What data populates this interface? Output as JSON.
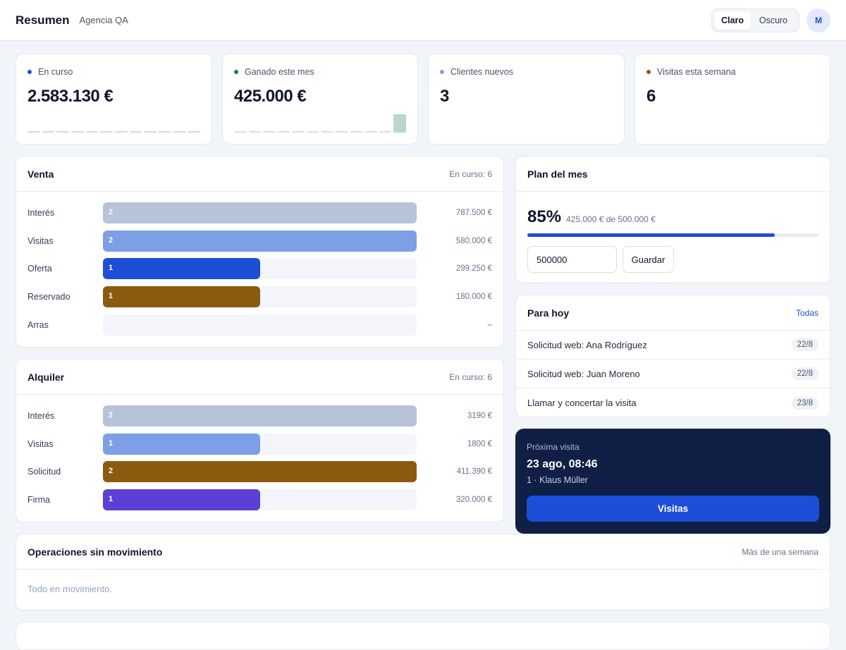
{
  "header": {
    "title": "Resumen",
    "subtitle": "Agencia QA",
    "theme_light": "Claro",
    "theme_dark": "Oscuro",
    "avatar_initial": "M"
  },
  "stats": [
    {
      "label": "En curso",
      "value": "2.583.130 €",
      "dot_color": "#1d4ed8"
    },
    {
      "label": "Ganado este mes",
      "value": "425.000 €",
      "dot_color": "#15803d"
    },
    {
      "label": "Clientes nuevos",
      "value": "3",
      "dot_color": "#7c9fe6"
    },
    {
      "label": "Visitas esta semana",
      "value": "6",
      "dot_color": "#8a5a0f"
    }
  ],
  "venta": {
    "title": "Venta",
    "aside": "En curso: 6",
    "stages": [
      {
        "label": "Interés",
        "count": "2",
        "amount": "787.500 €",
        "fraction": 1.0,
        "color": "#b7c3d9"
      },
      {
        "label": "Visitas",
        "count": "2",
        "amount": "580.000 €",
        "fraction": 1.0,
        "color": "#7c9fe6"
      },
      {
        "label": "Oferta",
        "count": "1",
        "amount": "299.250 €",
        "fraction": 0.5,
        "color": "#1d4ed8"
      },
      {
        "label": "Reservado",
        "count": "1",
        "amount": "180.000 €",
        "fraction": 0.5,
        "color": "#8a5a0f"
      },
      {
        "label": "Arras",
        "count": "",
        "amount": "–",
        "fraction": 0,
        "color": "#f3f5fa"
      }
    ]
  },
  "alquiler": {
    "title": "Alquiler",
    "aside": "En curso: 6",
    "stages": [
      {
        "label": "Interés",
        "count": "2",
        "amount": "3190 €",
        "fraction": 1.0,
        "color": "#b7c3d9"
      },
      {
        "label": "Visitas",
        "count": "1",
        "amount": "1800 €",
        "fraction": 0.5,
        "color": "#7c9fe6"
      },
      {
        "label": "Solicitud",
        "count": "2",
        "amount": "411.390 €",
        "fraction": 1.0,
        "color": "#8a5a0f"
      },
      {
        "label": "Firma",
        "count": "1",
        "amount": "320.000 €",
        "fraction": 0.5,
        "color": "#5b3fd6"
      }
    ]
  },
  "plan": {
    "title": "Plan del mes",
    "percent": "85%",
    "detail": "425.000 € de 500.000 €",
    "progress": 0.85,
    "input_value": "500000",
    "save_label": "Guardar"
  },
  "today": {
    "title": "Para hoy",
    "link": "Todas",
    "tasks": [
      {
        "text": "Solicitud web: Ana Rodríguez",
        "date": "22/8"
      },
      {
        "text": "Solicitud web: Juan Moreno",
        "date": "22/8"
      },
      {
        "text": "Llamar y concertar la visita",
        "date": "23/8"
      }
    ]
  },
  "next_visit": {
    "label": "Próxima visita",
    "when": "23 ago, 08:46",
    "who": "1 · Klaus Müller",
    "button": "Visitas"
  },
  "stale": {
    "title": "Operaciones sin movimiento",
    "aside": "Más de una semana",
    "empty": "Todo en movimiento."
  }
}
